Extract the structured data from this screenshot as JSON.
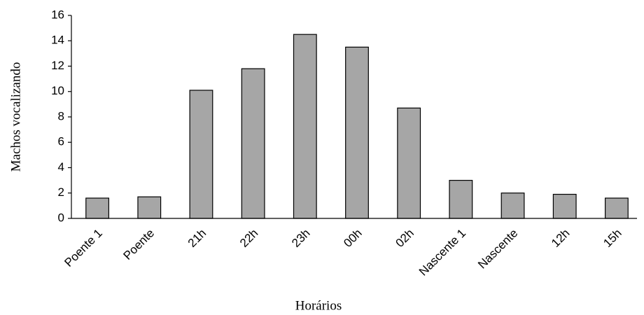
{
  "chart_data": {
    "type": "bar",
    "x_label": "Horários",
    "y_label": "Machos vocalizando",
    "categories": [
      "Poente 1",
      "Poente",
      "21h",
      "22h",
      "23h",
      "00h",
      "02h",
      "Nascente 1",
      "Nascente",
      "12h",
      "15h"
    ],
    "values": [
      1.6,
      1.7,
      10.1,
      11.8,
      14.5,
      13.5,
      8.7,
      3.0,
      2.0,
      1.9,
      1.6
    ],
    "color": "#a6a6a6",
    "ylim": [
      0,
      16
    ],
    "yticks": [
      0,
      2,
      4,
      6,
      8,
      10,
      12,
      14,
      16
    ],
    "grid": false
  }
}
